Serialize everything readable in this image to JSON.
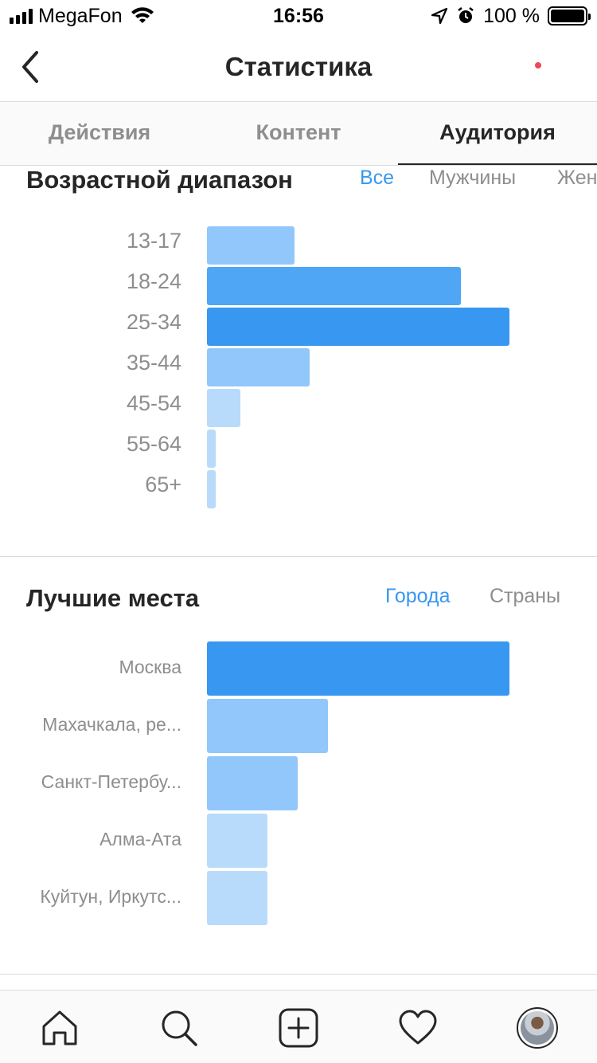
{
  "status_bar": {
    "carrier": "MegaFon",
    "time": "16:56",
    "battery": "100 %",
    "icons": [
      "signal-icon",
      "wifi-icon",
      "location-arrow-icon",
      "alarm-icon",
      "battery-icon"
    ]
  },
  "header": {
    "title": "Статистика",
    "back_icon": "chevron-left-icon"
  },
  "tabs": [
    {
      "label": "Действия",
      "active": false
    },
    {
      "label": "Контент",
      "active": false
    },
    {
      "label": "Аудитория",
      "active": true
    }
  ],
  "age_section": {
    "title": "Возрастной диапазон",
    "filters": [
      {
        "label": "Все",
        "active": true
      },
      {
        "label": "Мужчины",
        "active": false
      },
      {
        "label": "Жен",
        "active": false
      }
    ]
  },
  "places_section": {
    "title": "Лучшие места",
    "filters": [
      {
        "label": "Города",
        "active": true
      },
      {
        "label": "Страны",
        "active": false
      }
    ]
  },
  "chart_data": [
    {
      "type": "bar",
      "orientation": "horizontal",
      "categories": [
        "13-17",
        "18-24",
        "25-34",
        "35-44",
        "45-54",
        "55-64",
        "65+"
      ],
      "values": [
        29,
        84,
        100,
        34,
        11,
        3,
        3
      ],
      "colors": [
        "#91c7fb",
        "#4ea6f4",
        "#3897f0",
        "#91c7fb",
        "#b8dbfc",
        "#b8dbfc",
        "#b8dbfc"
      ]
    },
    {
      "type": "bar",
      "orientation": "horizontal",
      "categories": [
        "Москва",
        "Махачкала, ре...",
        "Санкт-Петербу...",
        "Алма-Ата",
        "Куйтун, Иркутс..."
      ],
      "values": [
        100,
        40,
        30,
        20,
        20
      ],
      "colors": [
        "#3897f0",
        "#91c7fb",
        "#91c7fb",
        "#b8dbfc",
        "#b8dbfc"
      ]
    }
  ],
  "bottom_nav": [
    {
      "name": "home-icon"
    },
    {
      "name": "search-icon"
    },
    {
      "name": "add-post-icon"
    },
    {
      "name": "heart-icon"
    },
    {
      "name": "profile-avatar"
    }
  ],
  "colors": {
    "accent": "#3897f0",
    "text_primary": "#262626",
    "text_secondary": "#8e8e8e",
    "notification": "#ed4956"
  }
}
